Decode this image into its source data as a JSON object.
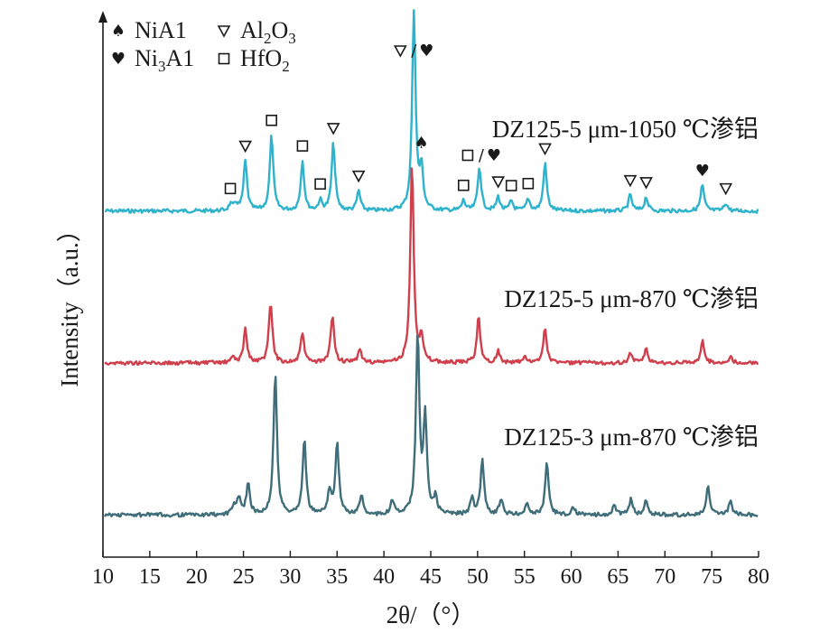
{
  "chart_data": {
    "type": "line",
    "xlabel": "2θ/（°）",
    "ylabel": "Intensity（a.u.）",
    "xlim": [
      10,
      80
    ],
    "xticks": [
      10,
      15,
      20,
      25,
      30,
      35,
      40,
      45,
      50,
      55,
      60,
      65,
      70,
      75,
      80
    ],
    "grid": false,
    "legend_position": "top-left",
    "legend": [
      {
        "symbol": "spade",
        "label": "NiA1"
      },
      {
        "symbol": "triangle",
        "label": "Al",
        "sub": "2",
        "label2": "O",
        "sub2": "3"
      },
      {
        "symbol": "heart",
        "label": "Ni",
        "sub": "3",
        "label2": "A1"
      },
      {
        "symbol": "square",
        "label": "HfO",
        "sub": "2"
      }
    ],
    "series": [
      {
        "name": "DZ125-5 μm-1050 ℃渗铝",
        "color": "#2fb3cc",
        "baseline": 0.3,
        "peaks": [
          [
            23.6,
            0.03
          ],
          [
            24.2,
            0.035
          ],
          [
            25.2,
            0.25
          ],
          [
            28.0,
            0.38
          ],
          [
            31.3,
            0.25
          ],
          [
            33.2,
            0.05
          ],
          [
            34.6,
            0.34
          ],
          [
            37.3,
            0.1
          ],
          [
            43.2,
            1.0
          ],
          [
            44.0,
            0.2
          ],
          [
            48.5,
            0.05
          ],
          [
            50.2,
            0.22
          ],
          [
            52.2,
            0.07
          ],
          [
            53.6,
            0.05
          ],
          [
            55.4,
            0.06
          ],
          [
            57.2,
            0.24
          ],
          [
            66.3,
            0.08
          ],
          [
            68.0,
            0.07
          ],
          [
            74.0,
            0.13
          ],
          [
            76.5,
            0.04
          ]
        ]
      },
      {
        "name": "DZ125-5 μm-870 ℃渗铝",
        "color": "#cf3f4c",
        "baseline": 0.0,
        "peaks": [
          [
            23.9,
            0.03
          ],
          [
            25.2,
            0.17
          ],
          [
            27.9,
            0.31
          ],
          [
            31.3,
            0.15
          ],
          [
            34.5,
            0.24
          ],
          [
            37.4,
            0.07
          ],
          [
            43.0,
            1.0
          ],
          [
            44.0,
            0.12
          ],
          [
            50.1,
            0.23
          ],
          [
            52.2,
            0.06
          ],
          [
            55.0,
            0.03
          ],
          [
            57.2,
            0.18
          ],
          [
            66.3,
            0.05
          ],
          [
            68.0,
            0.07
          ],
          [
            74.0,
            0.11
          ],
          [
            77.0,
            0.03
          ]
        ]
      },
      {
        "name": "DZ125-3 μm-870 ℃渗铝",
        "color": "#3f6d7a",
        "baseline": -0.3,
        "peaks": [
          [
            24.0,
            0.05
          ],
          [
            24.5,
            0.08
          ],
          [
            25.5,
            0.16
          ],
          [
            28.4,
            0.72
          ],
          [
            31.5,
            0.38
          ],
          [
            34.2,
            0.12
          ],
          [
            35.0,
            0.37
          ],
          [
            37.6,
            0.1
          ],
          [
            40.9,
            0.07
          ],
          [
            43.6,
            0.9
          ],
          [
            44.4,
            0.48
          ],
          [
            45.5,
            0.08
          ],
          [
            49.4,
            0.08
          ],
          [
            50.5,
            0.28
          ],
          [
            52.5,
            0.08
          ],
          [
            55.3,
            0.06
          ],
          [
            57.4,
            0.26
          ],
          [
            60.2,
            0.04
          ],
          [
            64.6,
            0.05
          ],
          [
            66.4,
            0.08
          ],
          [
            68.0,
            0.07
          ],
          [
            74.6,
            0.14
          ],
          [
            77.0,
            0.07
          ]
        ]
      }
    ],
    "annotations": [
      {
        "symbol": "tri-heart",
        "x": 43.2
      },
      {
        "symbol": "square",
        "x": 23.6
      },
      {
        "symbol": "triangle",
        "x": 25.2
      },
      {
        "symbol": "square",
        "x": 28.0
      },
      {
        "symbol": "square",
        "x": 31.3
      },
      {
        "symbol": "square",
        "x": 33.2
      },
      {
        "symbol": "triangle",
        "x": 34.6
      },
      {
        "symbol": "triangle",
        "x": 37.3
      },
      {
        "symbol": "spade",
        "x": 44.0
      },
      {
        "symbol": "square",
        "x": 48.5
      },
      {
        "symbol": "square-heart",
        "x": 50.2
      },
      {
        "symbol": "triangle",
        "x": 52.2
      },
      {
        "symbol": "square",
        "x": 53.6
      },
      {
        "symbol": "square",
        "x": 55.4
      },
      {
        "symbol": "triangle",
        "x": 57.2
      },
      {
        "symbol": "triangle",
        "x": 66.3
      },
      {
        "symbol": "triangle",
        "x": 68.0
      },
      {
        "symbol": "heart",
        "x": 74.0
      },
      {
        "symbol": "triangle",
        "x": 76.5
      }
    ]
  }
}
